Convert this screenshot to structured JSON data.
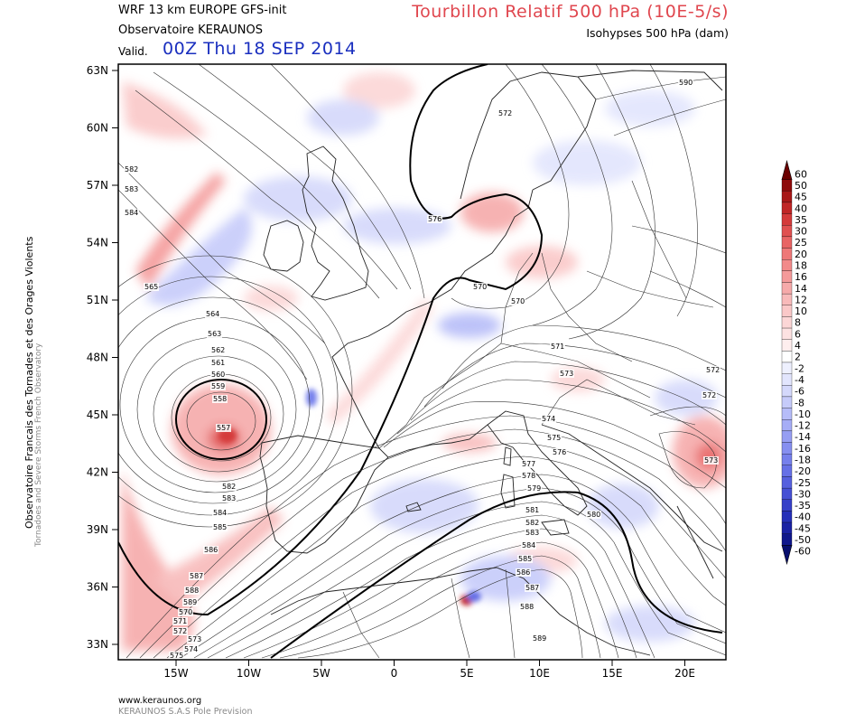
{
  "header": {
    "model_line": "WRF 13 km EUROPE   GFS-init",
    "organization": "Observatoire KERAUNOS",
    "valid_label": "Valid.",
    "valid_date": "00Z Thu 18 SEP 2014",
    "title": "Tourbillon Relatif 500 hPa (10E-5/s)",
    "subtitle": "Isohypses 500 hPa (dam)"
  },
  "side_title": {
    "line1": "Observatoire Francais des Tornades et des Orages Violents",
    "line2": "Tornadoes and Severe Storms French Observatory"
  },
  "footer": {
    "url": "www.keraunos.org",
    "company": "KERAUNOS S.A.S Pole Prevision"
  },
  "axes": {
    "lat_labels": [
      "63N",
      "60N",
      "57N",
      "54N",
      "51N",
      "48N",
      "45N",
      "42N",
      "39N",
      "36N",
      "33N"
    ],
    "lon_labels": [
      "15W",
      "10W",
      "5W",
      "0",
      "5E",
      "10E",
      "15E",
      "20E"
    ]
  },
  "colorbar": {
    "labels": [
      "60",
      "50",
      "45",
      "40",
      "35",
      "30",
      "25",
      "20",
      "18",
      "16",
      "14",
      "12",
      "10",
      "8",
      "6",
      "4",
      "2",
      "-2",
      "-4",
      "-6",
      "-8",
      "-10",
      "-12",
      "-14",
      "-16",
      "-18",
      "-20",
      "-25",
      "-30",
      "-35",
      "-40",
      "-45",
      "-50",
      "-60"
    ],
    "colors": [
      "#6b0000",
      "#8e0a0a",
      "#a81818",
      "#c02626",
      "#d43a3a",
      "#e05050",
      "#e86464",
      "#ee7878",
      "#f28a8a",
      "#f49a9a",
      "#f6aaaa",
      "#f8baba",
      "#fac8c8",
      "#fcd6d6",
      "#fde2e2",
      "#feeeee",
      "#ffffff",
      "#eef0fe",
      "#e2e5fd",
      "#d4d8fb",
      "#c6cbfa",
      "#b6bcf8",
      "#a6adf6",
      "#969ef3",
      "#868ff0",
      "#7680ec",
      "#6670e6",
      "#5660de",
      "#4650d4",
      "#3640c8",
      "#2630b8",
      "#1a22a4",
      "#10188c",
      "#080f6e"
    ]
  },
  "contour_labels": [
    "582",
    "583",
    "584",
    "565",
    "564",
    "563",
    "562",
    "561",
    "560",
    "559",
    "558",
    "557",
    "582",
    "583",
    "584",
    "585",
    "586",
    "587",
    "588",
    "589",
    "570",
    "571",
    "572",
    "573",
    "574",
    "575",
    "576",
    "570",
    "570",
    "571",
    "573",
    "574",
    "575",
    "576",
    "577",
    "578",
    "579",
    "580",
    "581",
    "582",
    "583",
    "584",
    "585",
    "586",
    "587",
    "588",
    "589",
    "590",
    "572",
    "572",
    "572",
    "573",
    "572",
    "570"
  ],
  "map": {
    "region": "Europe",
    "lat_range": [
      33,
      63
    ],
    "lon_range": [
      -19,
      23
    ]
  }
}
